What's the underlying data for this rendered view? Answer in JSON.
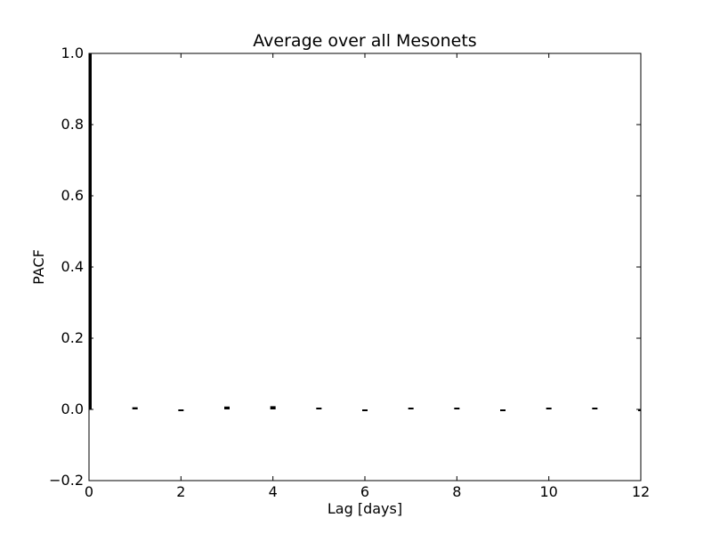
{
  "chart_data": {
    "type": "bar",
    "title": "Average over all Mesonets",
    "xlabel": "Lag [days]",
    "ylabel": "PACF",
    "xlim": [
      0,
      12
    ],
    "ylim": [
      -0.2,
      1.0
    ],
    "x_ticks": [
      0,
      2,
      4,
      6,
      8,
      10,
      12
    ],
    "x_tick_labels": [
      "0",
      "2",
      "4",
      "6",
      "8",
      "10",
      "12"
    ],
    "y_ticks": [
      -0.2,
      0.0,
      0.2,
      0.4,
      0.6,
      0.8,
      1.0
    ],
    "y_tick_labels": [
      "−0.2",
      "0.0",
      "0.2",
      "0.4",
      "0.6",
      "0.8",
      "1.0"
    ],
    "grid": false,
    "legend": "none",
    "bar_color": "#000000",
    "series": [
      {
        "x": [
          0,
          1,
          2,
          3,
          4,
          5,
          6,
          7,
          8,
          9,
          10,
          11,
          12
        ],
        "values": [
          1.0,
          0.006,
          -0.003,
          0.008,
          0.009,
          0.004,
          -0.004,
          0.005,
          0.001,
          -0.003,
          0.003,
          0.002,
          -0.002
        ]
      }
    ]
  }
}
